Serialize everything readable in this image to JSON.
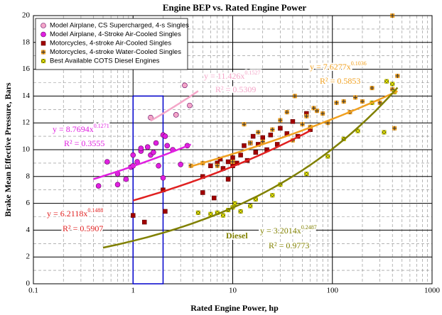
{
  "chart_data": {
    "type": "scatter",
    "title": "Engine BEP vs. Rated Engine Power",
    "x_label": "Rated Engine Power, hp",
    "y_label": "Brake Mean Effective Pressure, Bars",
    "xscale": "log",
    "xlim": [
      0.1,
      1000
    ],
    "xticks": [
      0.1,
      1,
      10,
      100,
      1000
    ],
    "ylim": [
      0,
      20
    ],
    "yticks": [
      0,
      2,
      4,
      6,
      8,
      10,
      12,
      14,
      16,
      18,
      20
    ],
    "grid": true,
    "legend": "upper left",
    "series": [
      {
        "name": "Model Airplane, CS Supercharged, 4-s Singles",
        "color": "#f4a6c8",
        "marker": "circle",
        "x": [
          1.5,
          2.7,
          3.3,
          3.7
        ],
        "values": [
          12.4,
          12.6,
          14.8,
          13.3
        ]
      },
      {
        "name": "Model Airplane, 4-Stroke Air-Cooled Singles",
        "color": "#e020e0",
        "marker": "circle",
        "x": [
          0.45,
          0.55,
          0.7,
          0.7,
          0.85,
          0.95,
          1.0,
          1.0,
          1.1,
          1.2,
          1.2,
          1.4,
          1.5,
          1.6,
          1.7,
          1.8,
          2.0,
          2.1,
          2.2,
          2.0,
          2.5,
          3.0,
          3.5
        ],
        "values": [
          7.3,
          9.1,
          7.4,
          8.2,
          7.8,
          8.7,
          8.8,
          9.6,
          9.1,
          9.9,
          10.1,
          10.2,
          9.6,
          9.8,
          10.5,
          8.8,
          11.1,
          11.0,
          10.3,
          7.9,
          10.0,
          8.9,
          10.3
        ]
      },
      {
        "name": "Motorcycles, 4-stroke Air-Cooled Singles",
        "color": "#a00000",
        "marker": "square",
        "x": [
          1.0,
          1.3,
          2.1,
          2.0,
          5,
          5,
          6,
          6.5,
          7,
          7.5,
          8,
          9,
          9,
          10,
          10,
          11,
          12,
          13,
          14,
          15,
          16,
          17,
          18,
          20,
          22,
          24,
          28,
          30,
          35,
          40,
          45,
          55,
          60
        ],
        "values": [
          5.1,
          4.6,
          5.4,
          7.0,
          6.8,
          8.0,
          8.8,
          6.4,
          9.0,
          9.3,
          8.6,
          9.1,
          7.8,
          8.8,
          9.4,
          9.0,
          9.6,
          10.3,
          9.2,
          10.5,
          11.0,
          9.8,
          10.4,
          10.9,
          10.0,
          11.1,
          10.4,
          11.6,
          11.2,
          12.1,
          11.0,
          12.7,
          11.5
        ]
      },
      {
        "name": "Motorcycles, 4-stroke Water-Cooled Singles",
        "color": "#f0a020",
        "marker": "plus",
        "x": [
          3.8,
          5,
          7,
          10,
          13,
          15,
          18,
          20,
          25,
          30,
          35,
          40,
          42,
          50,
          55,
          60,
          65,
          70,
          80,
          90,
          110,
          130,
          150,
          170,
          200,
          250,
          300,
          400,
          450,
          420,
          400
        ],
        "values": [
          8.8,
          9.0,
          8.8,
          9.1,
          11.9,
          10.5,
          11.3,
          10.6,
          11.5,
          12.2,
          12.8,
          10.7,
          14.0,
          11.9,
          12.5,
          11.7,
          13.1,
          12.9,
          12.7,
          12.0,
          13.5,
          13.6,
          12.8,
          13.9,
          13.6,
          14.6,
          13.5,
          14.5,
          15.5,
          11.6,
          20.0
        ]
      },
      {
        "name": "Best Available COTS Diesel Engines",
        "color": "#6b6b00",
        "marker": "x",
        "x": [
          4.5,
          6,
          7,
          8,
          9,
          10,
          10.5,
          12,
          15,
          17,
          25,
          30,
          55,
          90,
          130,
          180,
          250,
          330,
          350,
          400,
          420
        ],
        "values": [
          5.3,
          5.2,
          5.3,
          5.1,
          5.5,
          5.7,
          6.0,
          5.4,
          5.8,
          6.3,
          6.6,
          7.4,
          8.2,
          9.5,
          10.8,
          11.4,
          13.5,
          11.3,
          15.1,
          14.9,
          14.3
        ]
      }
    ],
    "trendlines": [
      {
        "color": "#f4a6c8",
        "coefficient": 11.426,
        "exponent": 0.1527,
        "x_range": [
          1.5,
          4.5
        ],
        "equation_label": "y = 11.426x",
        "r2_label": "R² = 0.5309"
      },
      {
        "color": "#e020e0",
        "coefficient": 8.7694,
        "exponent": 0.1271,
        "x_range": [
          0.4,
          3.8
        ],
        "equation_label": "y = 8.7694x",
        "r2_label": "R² = 0.3555"
      },
      {
        "color": "#e02020",
        "coefficient": 6.2118,
        "exponent": 0.1488,
        "x_range": [
          1,
          60
        ],
        "equation_label": "y = 6.2118x",
        "r2_label": "R² = 0.5907"
      },
      {
        "color": "#f0a020",
        "coefficient": 7.6277,
        "exponent": 0.1036,
        "x_range": [
          3.8,
          450
        ],
        "equation_label": "y = 7.6277x",
        "r2_label": "R² = 0.5853"
      },
      {
        "color": "#808000",
        "coefficient": 3.2014,
        "exponent": 0.2487,
        "x_range": [
          0.5,
          450
        ],
        "equation_label": "y = 3.2014x",
        "r2_label": "R² = 0.9773"
      }
    ],
    "annotation": "Diesel",
    "highlight_box": {
      "xlim": [
        1,
        2
      ],
      "ylim": [
        0,
        14
      ],
      "color": "#0000cc"
    }
  }
}
